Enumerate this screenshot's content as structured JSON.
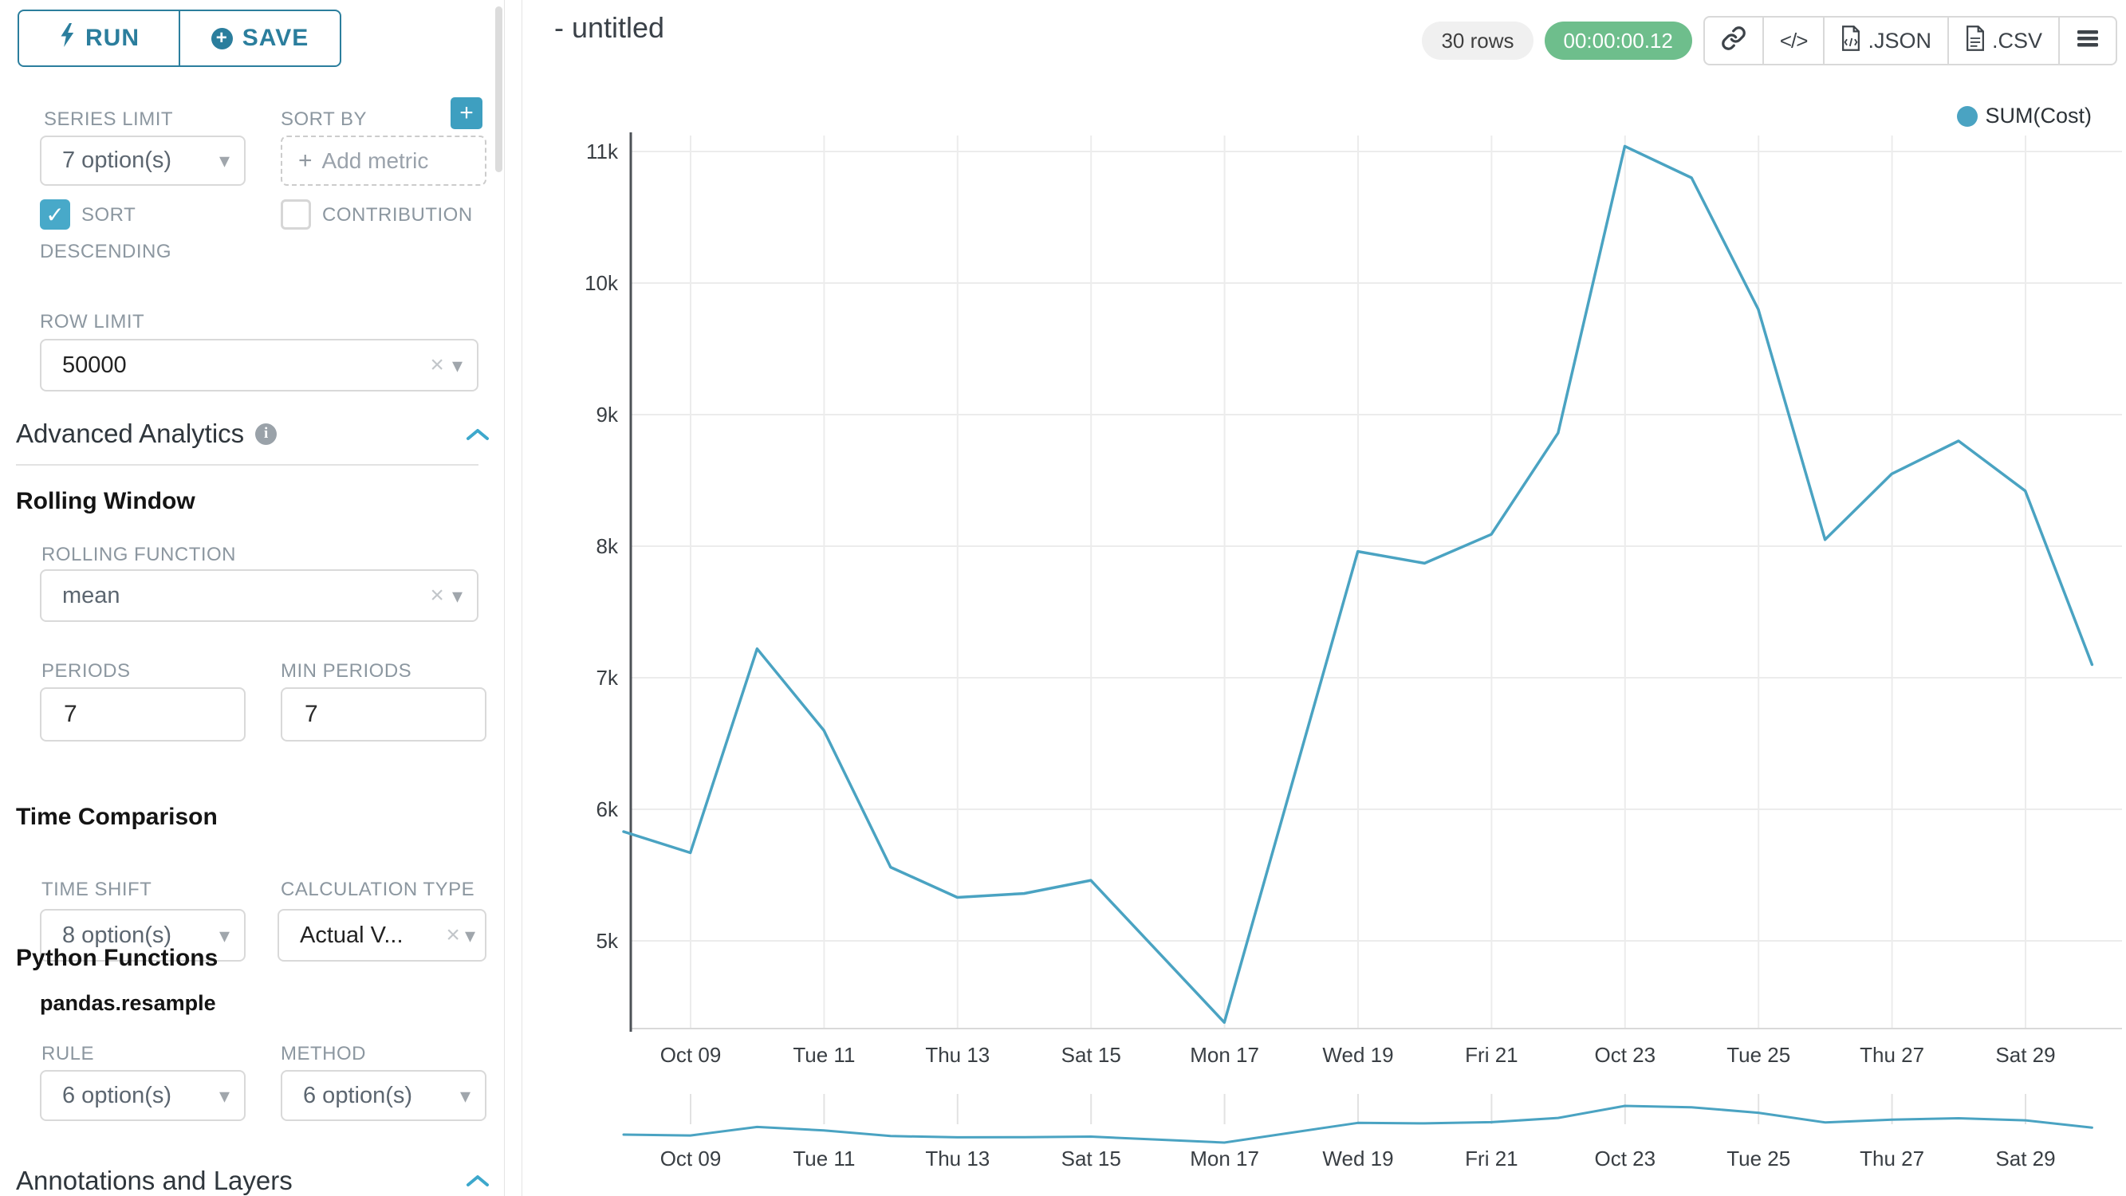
{
  "sidebar": {
    "run_label": "RUN",
    "save_label": "SAVE",
    "series_limit": {
      "label": "SERIES LIMIT",
      "value": "7 option(s)"
    },
    "sort_by": {
      "label": "SORT BY",
      "placeholder": "Add metric",
      "plus": "+"
    },
    "sort_descending": {
      "label_line1": "SORT",
      "label_line2": "DESCENDING",
      "checked": true,
      "check_glyph": "✓"
    },
    "contribution": {
      "label": "CONTRIBUTION",
      "checked": false
    },
    "row_limit": {
      "label": "ROW LIMIT",
      "value": "50000"
    },
    "advanced_analytics": {
      "title": "Advanced Analytics",
      "info_glyph": "i"
    },
    "rolling_window": {
      "title": "Rolling Window",
      "rolling_function": {
        "label": "ROLLING FUNCTION",
        "value": "mean"
      },
      "periods": {
        "label": "PERIODS",
        "value": "7"
      },
      "min_periods": {
        "label": "MIN PERIODS",
        "value": "7"
      }
    },
    "time_comparison": {
      "title": "Time Comparison",
      "time_shift": {
        "label": "TIME SHIFT",
        "value": "8 option(s)"
      },
      "calculation_type": {
        "label": "CALCULATION TYPE",
        "value": "Actual V..."
      }
    },
    "python_functions": {
      "title": "Python Functions",
      "subtitle": "pandas.resample",
      "rule": {
        "label": "RULE",
        "value": "6 option(s)"
      },
      "method": {
        "label": "METHOD",
        "value": "6 option(s)"
      }
    },
    "annotations": {
      "title": "Annotations and Layers"
    }
  },
  "header": {
    "title": "- untitled",
    "rows_badge": "30 rows",
    "time_badge": "00:00:00.12",
    "export_json": ".JSON",
    "export_csv": ".CSV"
  },
  "colors": {
    "accent": "#2b7e9d",
    "accent_light": "#48a9c9",
    "line": "#4aa3c2",
    "green_badge": "#6ebe8c"
  },
  "chart_data": {
    "type": "line",
    "title": "",
    "legend": [
      {
        "name": "SUM(Cost)",
        "color": "#4aa3c2"
      }
    ],
    "legend_position": "top-right",
    "grid": true,
    "x": [
      "Oct 08",
      "Oct 09",
      "Oct 10",
      "Oct 11",
      "Oct 12",
      "Oct 13",
      "Oct 14",
      "Oct 15",
      "Oct 16",
      "Oct 17",
      "Oct 18",
      "Oct 19",
      "Oct 20",
      "Oct 21",
      "Oct 22",
      "Oct 23",
      "Oct 24",
      "Oct 25",
      "Oct 26",
      "Oct 27",
      "Oct 28",
      "Oct 29",
      "Oct 30"
    ],
    "series": [
      {
        "name": "SUM(Cost)",
        "color": "#4aa3c2",
        "values": [
          5830,
          5670,
          7220,
          6600,
          5560,
          5330,
          5360,
          5460,
          4920,
          4380,
          6170,
          7960,
          7870,
          8090,
          8860,
          11040,
          10800,
          9800,
          8050,
          8550,
          8800,
          8420,
          7100
        ]
      }
    ],
    "x_tick_labels": [
      "Oct 09",
      "Tue 11",
      "Thu 13",
      "Sat 15",
      "Mon 17",
      "Wed 19",
      "Fri 21",
      "Oct 23",
      "Tue 25",
      "Thu 27",
      "Sat 29"
    ],
    "y_ticks": [
      11000,
      10000,
      9000,
      8000,
      7000,
      6000,
      5000
    ],
    "y_tick_labels": [
      "11k",
      "10k",
      "9k",
      "8k",
      "7k",
      "6k",
      "5k"
    ],
    "ylim": [
      5000,
      11000
    ],
    "xlabel": "",
    "ylabel": ""
  }
}
